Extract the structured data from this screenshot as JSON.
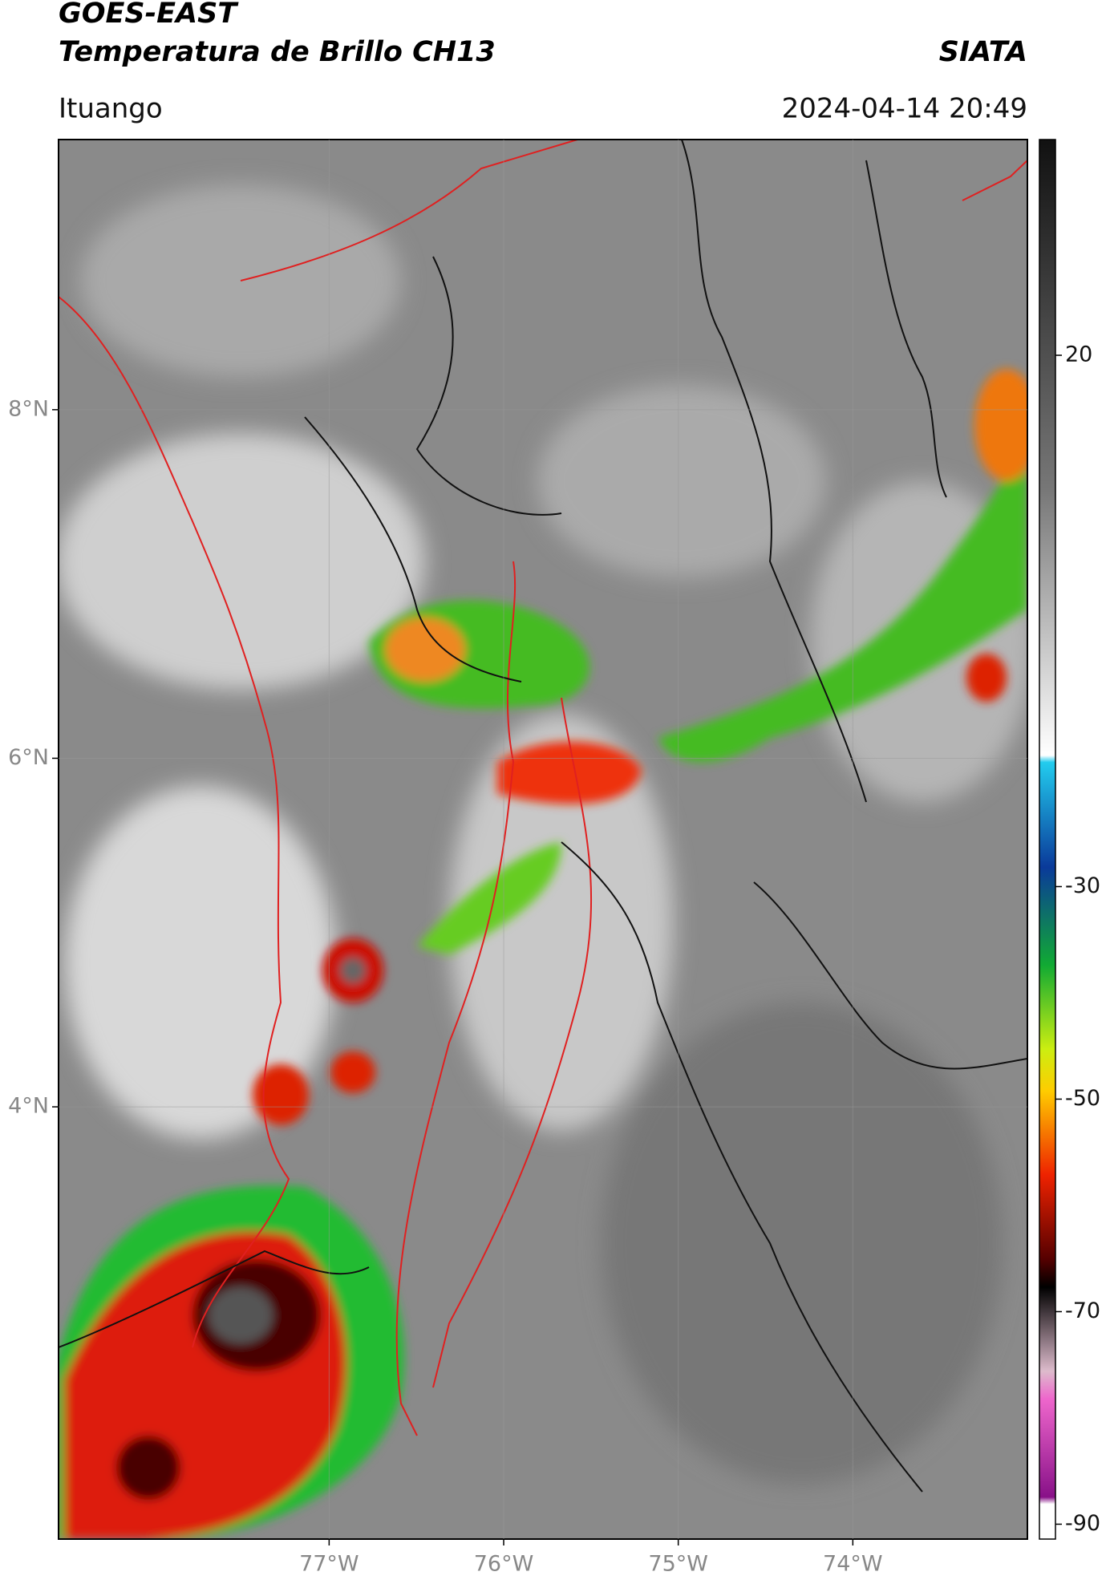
{
  "header": {
    "title": "GOES-EAST",
    "subtitle": "Temperatura de Brillo CH13",
    "brand": "SIATA",
    "location": "Ituango",
    "timestamp": "2024-04-14 20:49"
  },
  "map": {
    "lon_range": [
      -78.55,
      -73.0
    ],
    "lat_range": [
      1.52,
      9.55
    ],
    "lon_ticks": [
      {
        "value": -77,
        "label": "77°W"
      },
      {
        "value": -76,
        "label": "76°W"
      },
      {
        "value": -75,
        "label": "75°W"
      },
      {
        "value": -74,
        "label": "74°W"
      }
    ],
    "lat_ticks": [
      {
        "value": 8,
        "label": "8°N"
      },
      {
        "value": 6,
        "label": "6°N"
      },
      {
        "value": 4,
        "label": "4°N"
      }
    ]
  },
  "colorbar": {
    "range": [
      -91.4,
      40.3
    ],
    "ticks": [
      20,
      -30,
      -50,
      -70,
      -90
    ]
  }
}
